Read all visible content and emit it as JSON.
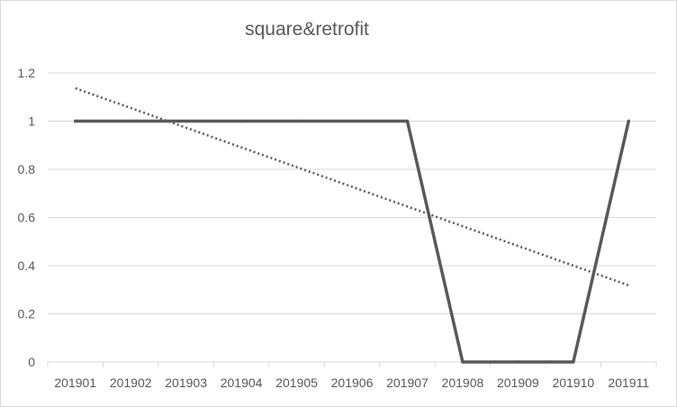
{
  "chart_data": {
    "type": "line",
    "title": "square&retrofit",
    "xlabel": "",
    "ylabel": "",
    "categories": [
      "201901",
      "201902",
      "201903",
      "201904",
      "201905",
      "201906",
      "201907",
      "201908",
      "201909",
      "201910",
      "201911"
    ],
    "series": [
      {
        "values": [
          1,
          1,
          1,
          1,
          1,
          1,
          1,
          0,
          0,
          0,
          1
        ],
        "color": "#595959",
        "style": "solid"
      }
    ],
    "trendline": {
      "type": "linear",
      "color": "#595959",
      "style": "dotted"
    },
    "ylim": [
      0,
      1.2
    ],
    "yticks": [
      "0",
      "0.2",
      "0.4",
      "0.6",
      "0.8",
      "1",
      "1.2"
    ],
    "grid": true,
    "legend": "none"
  }
}
